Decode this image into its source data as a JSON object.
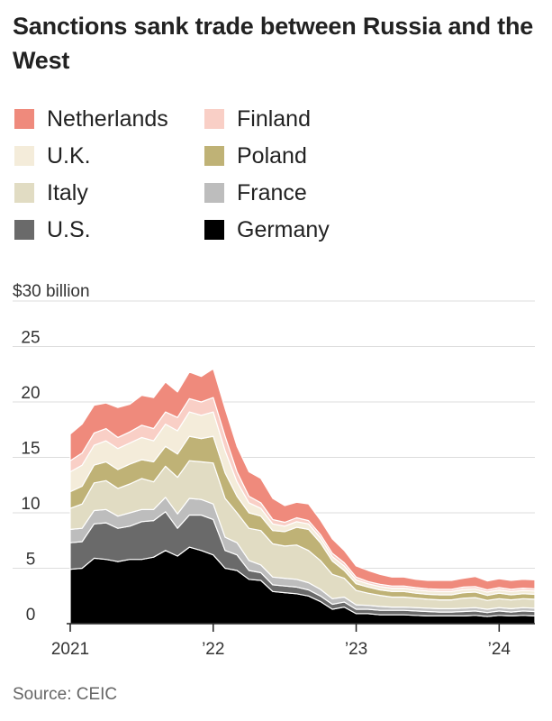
{
  "title": "Sanctions sank trade between Russia and the West",
  "source": "Source: CEIC",
  "legend": [
    {
      "name": "Netherlands",
      "color": "#ef8a7c"
    },
    {
      "name": "Finland",
      "color": "#f9cfc6"
    },
    {
      "name": "U.K.",
      "color": "#f4ecda"
    },
    {
      "name": "Poland",
      "color": "#bfb276"
    },
    {
      "name": "Italy",
      "color": "#e1dcc3"
    },
    {
      "name": "France",
      "color": "#bdbdbd"
    },
    {
      "name": "U.S.",
      "color": "#6a6a6a"
    },
    {
      "name": "Germany",
      "color": "#000000"
    }
  ],
  "chart_data": {
    "type": "area",
    "stacked": true,
    "ylabel": "$30 billion",
    "ylim": [
      0,
      30
    ],
    "yticks": [
      0,
      5,
      10,
      15,
      20,
      25
    ],
    "ytick_labels": [
      "0",
      "5",
      "10",
      "15",
      "20",
      "25"
    ],
    "top_label": "$30 billion",
    "x": [
      "2021-01",
      "2021-02",
      "2021-03",
      "2021-04",
      "2021-05",
      "2021-06",
      "2021-07",
      "2021-08",
      "2021-09",
      "2021-10",
      "2021-11",
      "2021-12",
      "2022-01",
      "2022-02",
      "2022-03",
      "2022-04",
      "2022-05",
      "2022-06",
      "2022-07",
      "2022-08",
      "2022-09",
      "2022-10",
      "2022-11",
      "2022-12",
      "2023-01",
      "2023-02",
      "2023-03",
      "2023-04",
      "2023-05",
      "2023-06",
      "2023-07",
      "2023-08",
      "2023-09",
      "2023-10",
      "2023-11",
      "2023-12",
      "2024-01",
      "2024-02",
      "2024-03",
      "2024-04"
    ],
    "xticks": [
      "2021-01",
      "2022-01",
      "2023-01",
      "2024-01"
    ],
    "xtick_labels": [
      "2021",
      "’22",
      "’23",
      "’24"
    ],
    "series": [
      {
        "name": "Germany",
        "values": [
          4.9,
          5.0,
          5.9,
          5.8,
          5.6,
          5.8,
          5.8,
          6.0,
          6.6,
          6.1,
          6.9,
          6.6,
          6.2,
          5.0,
          4.8,
          4.0,
          3.9,
          2.9,
          2.8,
          2.7,
          2.5,
          2.0,
          1.3,
          1.5,
          0.9,
          0.9,
          0.8,
          0.8,
          0.8,
          0.75,
          0.7,
          0.7,
          0.7,
          0.7,
          0.75,
          0.65,
          0.75,
          0.7,
          0.75,
          0.7
        ]
      },
      {
        "name": "U.S.",
        "values": [
          2.4,
          2.4,
          3.1,
          3.3,
          3.0,
          3.0,
          3.4,
          3.3,
          3.5,
          2.5,
          2.9,
          3.2,
          3.2,
          1.6,
          1.4,
          0.8,
          0.7,
          0.6,
          0.6,
          0.6,
          0.55,
          0.5,
          0.45,
          0.45,
          0.4,
          0.4,
          0.4,
          0.4,
          0.4,
          0.4,
          0.4,
          0.35,
          0.35,
          0.4,
          0.4,
          0.35,
          0.4,
          0.35,
          0.4,
          0.4
        ]
      },
      {
        "name": "France",
        "values": [
          1.2,
          1.2,
          1.2,
          1.2,
          1.1,
          1.2,
          1.1,
          1.0,
          1.3,
          1.3,
          1.5,
          1.4,
          1.4,
          1.2,
          1.1,
          0.9,
          0.7,
          0.7,
          0.7,
          0.7,
          0.65,
          0.6,
          0.5,
          0.45,
          0.4,
          0.35,
          0.35,
          0.3,
          0.3,
          0.3,
          0.3,
          0.3,
          0.3,
          0.3,
          0.3,
          0.3,
          0.3,
          0.3,
          0.3,
          0.3
        ]
      },
      {
        "name": "Italy",
        "values": [
          1.9,
          2.2,
          2.5,
          2.6,
          2.5,
          2.6,
          2.8,
          2.5,
          2.8,
          3.3,
          3.4,
          3.4,
          3.7,
          3.5,
          2.7,
          2.9,
          3.1,
          3.0,
          2.9,
          3.1,
          2.9,
          2.6,
          2.2,
          1.7,
          1.3,
          1.1,
          1.0,
          0.9,
          0.9,
          0.85,
          0.8,
          0.8,
          0.8,
          0.9,
          0.9,
          0.8,
          0.8,
          0.8,
          0.8,
          0.8
        ]
      },
      {
        "name": "Poland",
        "values": [
          1.5,
          1.6,
          1.6,
          1.7,
          1.7,
          1.8,
          1.7,
          1.8,
          1.8,
          2.1,
          2.2,
          2.1,
          2.4,
          2.3,
          1.5,
          1.4,
          1.3,
          1.2,
          1.3,
          1.6,
          1.9,
          1.6,
          1.2,
          0.7,
          0.6,
          0.55,
          0.5,
          0.5,
          0.5,
          0.45,
          0.45,
          0.45,
          0.45,
          0.5,
          0.5,
          0.45,
          0.5,
          0.45,
          0.45,
          0.45
        ]
      },
      {
        "name": "U.K.",
        "values": [
          1.8,
          1.9,
          1.8,
          1.9,
          1.9,
          1.9,
          2.0,
          1.9,
          2.0,
          2.1,
          2.2,
          2.1,
          2.2,
          2.0,
          1.3,
          0.9,
          0.7,
          0.6,
          0.5,
          0.5,
          0.5,
          0.45,
          0.4,
          0.4,
          0.35,
          0.3,
          0.3,
          0.3,
          0.3,
          0.3,
          0.3,
          0.3,
          0.3,
          0.3,
          0.3,
          0.3,
          0.3,
          0.3,
          0.3,
          0.3
        ]
      },
      {
        "name": "Finland",
        "values": [
          1.0,
          1.1,
          1.1,
          1.1,
          1.0,
          1.0,
          1.1,
          1.1,
          1.1,
          1.2,
          1.2,
          1.2,
          1.3,
          1.3,
          0.9,
          0.6,
          0.5,
          0.4,
          0.35,
          0.35,
          0.3,
          0.3,
          0.3,
          0.3,
          0.25,
          0.2,
          0.2,
          0.2,
          0.2,
          0.2,
          0.2,
          0.2,
          0.2,
          0.2,
          0.2,
          0.2,
          0.2,
          0.2,
          0.2,
          0.2
        ]
      },
      {
        "name": "Netherlands",
        "values": [
          2.4,
          2.6,
          2.5,
          2.3,
          2.7,
          2.5,
          2.7,
          2.8,
          2.7,
          2.3,
          2.4,
          2.3,
          2.6,
          2.5,
          2.3,
          2.2,
          2.2,
          1.9,
          1.5,
          1.4,
          1.5,
          1.3,
          1.3,
          1.1,
          1.0,
          1.0,
          0.9,
          0.8,
          0.8,
          0.75,
          0.75,
          0.8,
          0.8,
          0.8,
          0.9,
          0.8,
          0.8,
          0.8,
          0.8,
          0.8
        ]
      }
    ],
    "grid": true
  }
}
